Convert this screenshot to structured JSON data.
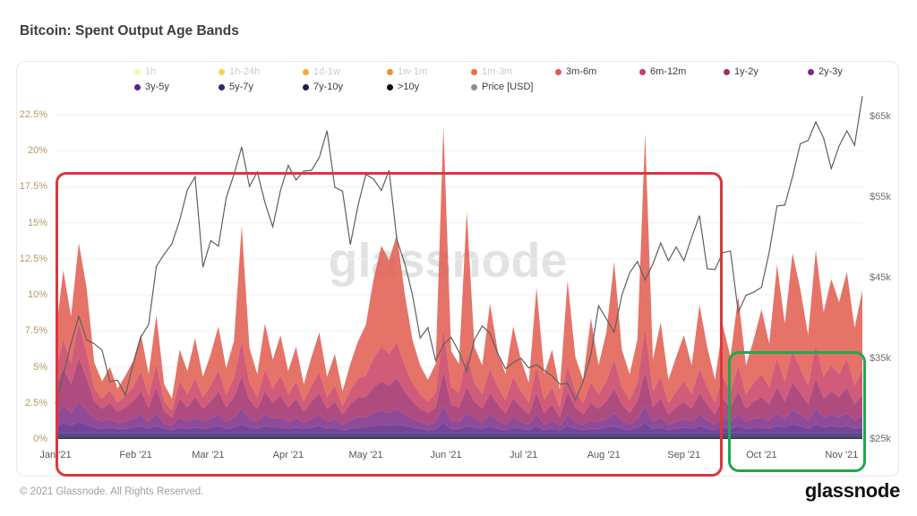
{
  "page": {
    "title": "Bitcoin: Spent Output Age Bands",
    "footer_copyright": "© 2021 Glassnode. All Rights Reserved.",
    "brand_wordmark": "glassnode",
    "watermark": "glassnode"
  },
  "legend": {
    "rows": [
      [
        {
          "label": "1h",
          "color": "#f8f4b8",
          "faded": true
        },
        {
          "label": "1h-24h",
          "color": "#f6d34c",
          "faded": true
        },
        {
          "label": "1d-1w",
          "color": "#f3ab3a",
          "faded": true
        },
        {
          "label": "1w-1m",
          "color": "#ef8f33",
          "faded": true
        },
        {
          "label": "1m-3m",
          "color": "#e8713f",
          "faded": true
        },
        {
          "label": "3m-6m",
          "color": "#e05a4e",
          "faded": false
        },
        {
          "label": "6m-12m",
          "color": "#c83f63",
          "faded": false
        },
        {
          "label": "1y-2y",
          "color": "#a12d68",
          "faded": false
        },
        {
          "label": "2y-3y",
          "color": "#7c2c86",
          "faded": false
        }
      ],
      [
        {
          "label": "3y-5y",
          "color": "#5a2487",
          "faded": false
        },
        {
          "label": "5y-7y",
          "color": "#3a2179",
          "faded": false
        },
        {
          "label": "7y-10y",
          "color": "#1f1b4e",
          "faded": false
        },
        {
          "label": ">10y",
          "color": "#0d0d16",
          "faded": false
        },
        {
          "label": "Price [USD]",
          "color": "#8c8c8c",
          "faded": false
        }
      ]
    ]
  },
  "chart_data": {
    "type": "area",
    "stacked": true,
    "title": "Bitcoin: Spent Output Age Bands",
    "x_start": "2021-01-01",
    "x_step_days": 3,
    "n_points": 105,
    "x_ticks": [
      {
        "label": "Jan '21",
        "day": 0
      },
      {
        "label": "Feb '21",
        "day": 31
      },
      {
        "label": "Mar '21",
        "day": 59
      },
      {
        "label": "Apr '21",
        "day": 90
      },
      {
        "label": "May '21",
        "day": 120
      },
      {
        "label": "Jun '21",
        "day": 151
      },
      {
        "label": "Jul '21",
        "day": 181
      },
      {
        "label": "Aug '21",
        "day": 212
      },
      {
        "label": "Sep '21",
        "day": 243
      },
      {
        "label": "Oct '21",
        "day": 273
      },
      {
        "label": "Nov '21",
        "day": 304
      }
    ],
    "y_left": {
      "unit": "%",
      "min": 0,
      "max": 22.5,
      "grid": true,
      "ticks": [
        {
          "label": "0%",
          "value": 0
        },
        {
          "label": "2.5%",
          "value": 2.5
        },
        {
          "label": "5%",
          "value": 5
        },
        {
          "label": "7.5%",
          "value": 7.5
        },
        {
          "label": "10%",
          "value": 10
        },
        {
          "label": "12.5%",
          "value": 12.5
        },
        {
          "label": "15%",
          "value": 15
        },
        {
          "label": "17.5%",
          "value": 17.5
        },
        {
          "label": "20%",
          "value": 20
        },
        {
          "label": "22.5%",
          "value": 22.5
        }
      ]
    },
    "y_right": {
      "unit": "USD (thousands)",
      "min": 25,
      "max": 65.2,
      "ticks": [
        {
          "label": "$25k",
          "value": 25
        },
        {
          "label": "$35k",
          "value": 35
        },
        {
          "label": "$45k",
          "value": 45
        },
        {
          "label": "$55k",
          "value": 55
        },
        {
          "label": "$65k",
          "value": 65
        }
      ]
    },
    "series": [
      {
        "name": ">10y",
        "color": "#0d0d16",
        "constant": 0.08
      },
      {
        "name": "7y-10y",
        "color": "#1f1b4e",
        "constant": 0.12
      },
      {
        "name": "5y-7y",
        "color": "#3a2179",
        "constant": 0.2
      },
      {
        "name": "3y-5y",
        "color": "#5a2487",
        "values": [
          0.5,
          0.7,
          0.5,
          0.8,
          0.6,
          0.4,
          0.3,
          0.4,
          0.3,
          0.3,
          0.4,
          0.5,
          0.3,
          0.5,
          0.3,
          0.2,
          0.4,
          0.3,
          0.4,
          0.3,
          0.4,
          0.5,
          0.3,
          0.4,
          0.6,
          0.4,
          0.3,
          0.5,
          0.4,
          0.4,
          0.3,
          0.4,
          0.3,
          0.4,
          0.5,
          0.3,
          0.4,
          0.2,
          0.3,
          0.4,
          0.4,
          0.5,
          0.6,
          0.5,
          0.6,
          0.5,
          0.4,
          0.3,
          0.2,
          0.3,
          0.7,
          0.3,
          0.3,
          0.5,
          0.4,
          0.3,
          0.5,
          0.3,
          0.2,
          0.4,
          0.3,
          0.2,
          0.5,
          0.2,
          0.3,
          0.2,
          0.5,
          0.3,
          0.2,
          0.3,
          0.3,
          0.4,
          0.5,
          0.3,
          0.2,
          0.4,
          0.7,
          0.3,
          0.4,
          0.2,
          0.3,
          0.4,
          0.3,
          0.5,
          0.3,
          0.2,
          0.4,
          0.3,
          0.5,
          0.3,
          0.4,
          0.4,
          0.3,
          0.5,
          0.4,
          0.6,
          0.5,
          0.3,
          0.6,
          0.4,
          0.5,
          0.4,
          0.5,
          0.3,
          0.4
        ]
      },
      {
        "name": "2y-3y",
        "color": "#7c2c86",
        "values": [
          0.8,
          1.2,
          0.9,
          1.4,
          1.0,
          0.6,
          0.5,
          0.6,
          0.4,
          0.5,
          0.6,
          0.8,
          0.5,
          0.9,
          0.4,
          0.3,
          0.7,
          0.5,
          0.7,
          0.5,
          0.6,
          0.8,
          0.5,
          0.7,
          1.1,
          0.6,
          0.5,
          0.8,
          0.6,
          0.7,
          0.5,
          0.7,
          0.4,
          0.6,
          0.8,
          0.5,
          0.6,
          0.4,
          0.6,
          0.7,
          0.7,
          0.9,
          1.0,
          0.9,
          1.1,
          0.8,
          0.6,
          0.5,
          0.4,
          0.5,
          1.2,
          0.6,
          0.5,
          0.9,
          0.6,
          0.5,
          0.8,
          0.6,
          0.4,
          0.7,
          0.5,
          0.4,
          0.8,
          0.4,
          0.6,
          0.3,
          0.8,
          0.5,
          0.4,
          0.6,
          0.5,
          0.6,
          0.9,
          0.6,
          0.4,
          0.6,
          1.2,
          0.5,
          0.7,
          0.4,
          0.5,
          0.6,
          0.5,
          0.8,
          0.6,
          0.4,
          0.7,
          0.5,
          0.8,
          0.5,
          0.6,
          0.7,
          0.6,
          0.9,
          0.6,
          1.0,
          0.8,
          0.6,
          1.1,
          0.7,
          0.8,
          0.7,
          0.9,
          0.6,
          0.8
        ]
      },
      {
        "name": "1y-2y",
        "color": "#a12d68",
        "values": [
          1.8,
          2.6,
          2.0,
          3.0,
          2.2,
          1.2,
          0.9,
          1.1,
          0.8,
          1.0,
          1.2,
          1.6,
          1.0,
          1.8,
          0.8,
          0.6,
          1.3,
          1.0,
          1.4,
          0.9,
          1.2,
          1.6,
          1.0,
          1.4,
          2.2,
          1.3,
          0.9,
          1.6,
          1.1,
          1.5,
          1.0,
          1.3,
          0.8,
          1.2,
          1.5,
          0.9,
          1.2,
          0.7,
          1.1,
          1.4,
          1.4,
          1.8,
          2.0,
          1.9,
          2.1,
          1.6,
          1.2,
          0.9,
          0.8,
          1.0,
          2.4,
          1.1,
          1.0,
          1.8,
          1.2,
          0.9,
          1.5,
          1.1,
          0.8,
          1.3,
          1.0,
          0.7,
          1.5,
          0.8,
          1.1,
          0.6,
          1.6,
          1.0,
          0.7,
          1.2,
          0.9,
          1.2,
          1.7,
          1.1,
          0.8,
          1.2,
          2.4,
          1.0,
          1.3,
          0.7,
          1.0,
          1.2,
          0.9,
          1.5,
          1.1,
          0.7,
          1.3,
          1.0,
          1.6,
          0.9,
          1.2,
          1.4,
          1.1,
          1.8,
          1.2,
          1.9,
          1.5,
          1.1,
          2.1,
          1.3,
          1.6,
          1.4,
          1.8,
          1.1,
          1.5
        ]
      },
      {
        "name": "6m-12m",
        "color": "#c83f63",
        "values": [
          1.2,
          2.0,
          1.5,
          2.5,
          1.8,
          0.9,
          0.7,
          0.9,
          0.6,
          0.8,
          1.0,
          1.4,
          0.8,
          1.6,
          0.7,
          0.5,
          1.2,
          0.9,
          1.3,
          0.8,
          1.1,
          1.5,
          0.9,
          1.3,
          2.5,
          1.2,
          0.8,
          1.5,
          1.0,
          1.4,
          0.9,
          1.2,
          0.7,
          1.1,
          1.4,
          0.8,
          1.1,
          0.6,
          1.0,
          1.3,
          1.5,
          2.0,
          2.4,
          2.2,
          2.5,
          1.8,
          1.3,
          1.0,
          0.8,
          1.0,
          3.0,
          1.2,
          1.0,
          2.2,
          1.3,
          1.0,
          1.7,
          1.2,
          0.9,
          1.5,
          1.1,
          0.8,
          1.8,
          0.9,
          1.2,
          0.7,
          1.9,
          1.1,
          0.8,
          1.4,
          1.0,
          1.4,
          2.0,
          1.2,
          0.9,
          1.3,
          3.0,
          1.1,
          1.5,
          0.8,
          1.1,
          1.4,
          1.0,
          1.7,
          1.2,
          0.8,
          1.5,
          1.1,
          1.8,
          1.0,
          1.3,
          1.6,
          1.2,
          2.0,
          1.4,
          2.2,
          1.7,
          1.3,
          2.4,
          1.5,
          1.8,
          1.6,
          2.0,
          1.3,
          1.7
        ]
      },
      {
        "name": "3m-6m",
        "color": "#e05a4e",
        "values": [
          2.5,
          4.8,
          3.2,
          5.5,
          4.5,
          1.8,
          1.2,
          1.6,
          1.0,
          1.4,
          1.8,
          2.6,
          1.5,
          3.4,
          1.2,
          0.8,
          2.2,
          1.6,
          2.8,
          1.4,
          2.2,
          3.0,
          1.8,
          2.6,
          8.0,
          2.4,
          1.6,
          3.2,
          2.0,
          2.8,
          1.6,
          2.4,
          1.2,
          2.0,
          2.8,
          1.4,
          2.2,
          1.0,
          1.8,
          2.6,
          3.5,
          5.5,
          7.0,
          6.5,
          7.5,
          5.0,
          3.0,
          2.0,
          1.5,
          2.0,
          14.0,
          2.5,
          2.0,
          10.0,
          2.5,
          2.0,
          4.5,
          2.5,
          1.8,
          3.5,
          2.2,
          1.4,
          5.5,
          1.8,
          2.6,
          1.2,
          5.8,
          2.4,
          1.6,
          4.5,
          2.0,
          3.4,
          6.8,
          2.6,
          1.8,
          3.0,
          13.5,
          2.2,
          3.8,
          1.6,
          2.4,
          3.2,
          2.0,
          4.4,
          2.8,
          1.6,
          3.6,
          2.4,
          4.8,
          2.0,
          3.0,
          4.5,
          3.0,
          6.5,
          4.0,
          6.8,
          5.5,
          3.5,
          6.5,
          4.5,
          6.0,
          5.0,
          6.0,
          4.0,
          5.5
        ]
      }
    ],
    "price_series": {
      "name": "Price [USD]",
      "color": "#5f5f5f",
      "unit": "USD thousands",
      "values": [
        29.4,
        33.0,
        36.8,
        40.2,
        37.3,
        36.8,
        36.0,
        32.1,
        32.3,
        30.4,
        34.3,
        37.6,
        39.2,
        46.4,
        47.9,
        49.2,
        52.1,
        55.9,
        57.5,
        46.3,
        49.6,
        48.9,
        54.9,
        57.8,
        61.2,
        56.3,
        58.1,
        54.3,
        51.3,
        55.8,
        58.9,
        57.1,
        58.2,
        58.3,
        59.9,
        63.2,
        56.2,
        55.7,
        49.1,
        54.0,
        57.8,
        57.2,
        55.8,
        58.3,
        49.7,
        46.8,
        42.9,
        37.5,
        38.8,
        34.7,
        36.7,
        37.6,
        35.8,
        33.4,
        37.3,
        39.0,
        38.1,
        35.6,
        33.7,
        34.5,
        35.0,
        33.8,
        34.2,
        33.5,
        32.8,
        31.8,
        31.9,
        29.8,
        32.1,
        35.4,
        41.5,
        39.9,
        38.2,
        42.8,
        45.6,
        47.0,
        44.7,
        46.7,
        49.3,
        47.1,
        48.8,
        47.1,
        50.0,
        52.7,
        46.1,
        46.0,
        48.1,
        48.3,
        40.7,
        42.8,
        43.2,
        43.8,
        48.2,
        53.9,
        54.0,
        57.5,
        61.6,
        62.0,
        64.3,
        62.3,
        58.5,
        61.3,
        63.2,
        61.4,
        67.5
      ]
    },
    "annotations": [
      {
        "id": "red-box",
        "shape": "rect",
        "color": "#d8383f",
        "day_range": [
          0,
          258
        ],
        "pct_range": [
          -2.6,
          18.5
        ]
      },
      {
        "id": "green-box",
        "shape": "rect",
        "color": "#1fa84f",
        "day_range": [
          260,
          313.5
        ],
        "pct_range": [
          -2.3,
          6.1
        ]
      }
    ]
  }
}
